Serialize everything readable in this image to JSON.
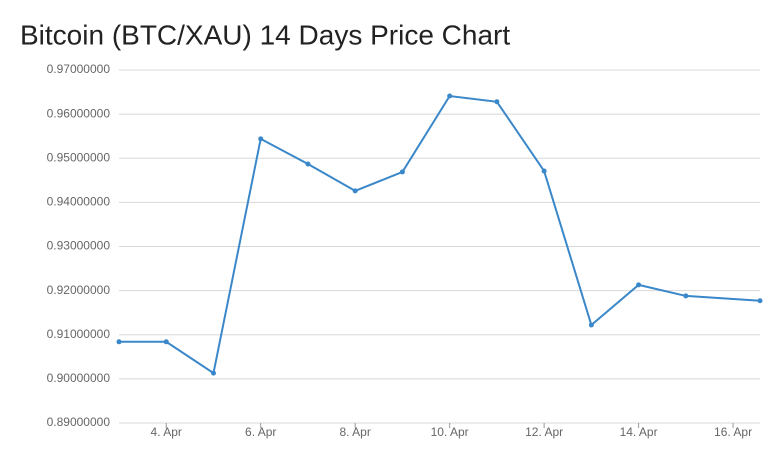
{
  "chart_data": {
    "type": "line",
    "title": "Bitcoin (BTC/XAU) 14 Days Price Chart",
    "x": [
      3,
      4,
      5,
      6,
      7,
      8,
      9,
      10,
      11,
      12,
      13,
      14,
      15,
      16.57
    ],
    "series": [
      {
        "name": "BTC/XAU",
        "color": "#3a87c9",
        "values": [
          0.9084,
          0.9084,
          0.9013,
          0.9544,
          0.9487,
          0.9426,
          0.9469,
          0.9641,
          0.9628,
          0.9471,
          0.9122,
          0.9213,
          0.9188,
          0.9177
        ]
      }
    ],
    "xlim": [
      3,
      16.57
    ],
    "xticks": [
      {
        "value": 4,
        "label": "4. Apr"
      },
      {
        "value": 6,
        "label": "6. Apr"
      },
      {
        "value": 8,
        "label": "8. Apr"
      },
      {
        "value": 10,
        "label": "10. Apr"
      },
      {
        "value": 12,
        "label": "12. Apr"
      },
      {
        "value": 14,
        "label": "14. Apr"
      },
      {
        "value": 16,
        "label": "16. Apr"
      }
    ],
    "ylim": [
      0.89,
      0.97
    ],
    "yticks": [
      {
        "value": 0.89,
        "label": "0.89000000"
      },
      {
        "value": 0.9,
        "label": "0.90000000"
      },
      {
        "value": 0.91,
        "label": "0.91000000"
      },
      {
        "value": 0.92,
        "label": "0.92000000"
      },
      {
        "value": 0.93,
        "label": "0.93000000"
      },
      {
        "value": 0.94,
        "label": "0.94000000"
      },
      {
        "value": 0.95,
        "label": "0.95000000"
      },
      {
        "value": 0.96,
        "label": "0.96000000"
      },
      {
        "value": 0.97,
        "label": "0.97000000"
      }
    ],
    "grid": true
  }
}
